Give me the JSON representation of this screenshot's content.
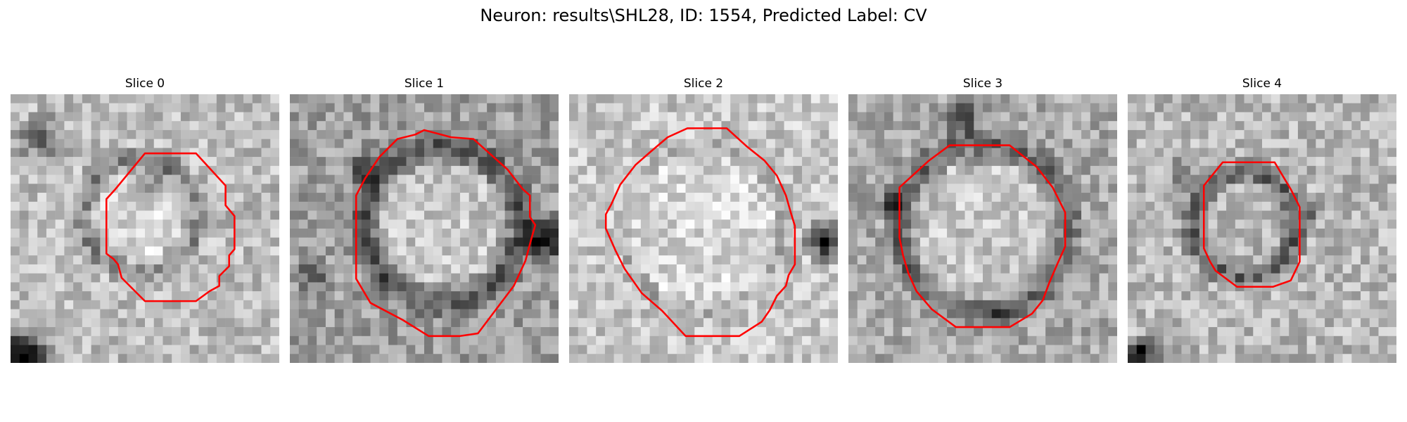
{
  "figure": {
    "title": "Neuron: results\\SHL28, ID: 1554, Predicted Label: CV"
  },
  "panels": [
    {
      "title": "Slice 0"
    },
    {
      "title": "Slice 1"
    },
    {
      "title": "Slice 2"
    },
    {
      "title": "Slice 3"
    },
    {
      "title": "Slice 4"
    }
  ],
  "colors": {
    "background": "#ffffff",
    "contour": "#ff0000",
    "image_colormap": "grayscale"
  }
}
